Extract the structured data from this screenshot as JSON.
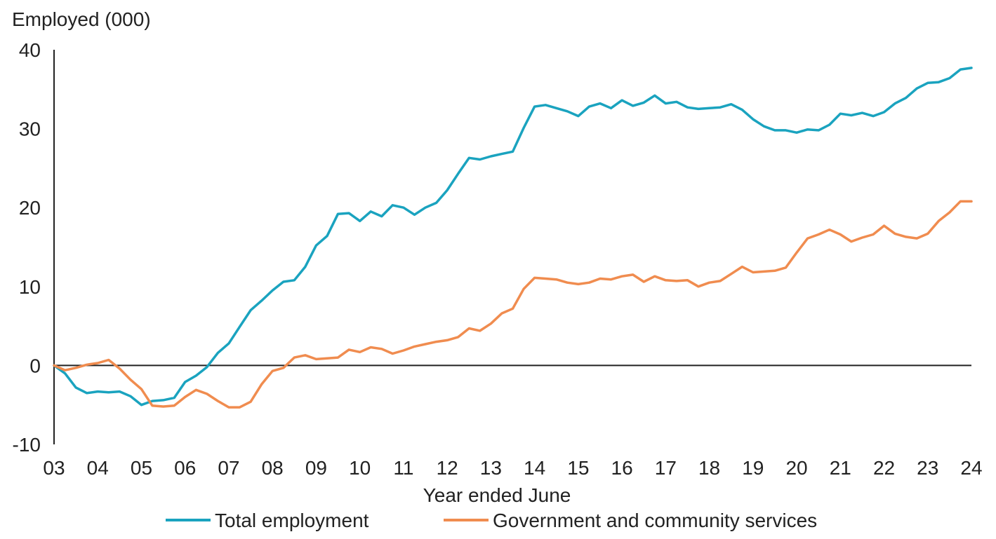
{
  "chart_data": {
    "type": "line",
    "ylabel": "Employed (000)",
    "xlabel": "Year ended June",
    "ylim": [
      -10,
      40
    ],
    "yticks": [
      -10,
      0,
      10,
      20,
      30,
      40
    ],
    "xlim": [
      3,
      24
    ],
    "xticks": [
      "03",
      "04",
      "05",
      "06",
      "07",
      "08",
      "09",
      "10",
      "11",
      "12",
      "13",
      "14",
      "15",
      "16",
      "17",
      "18",
      "19",
      "20",
      "21",
      "22",
      "23",
      "24"
    ],
    "grid": false,
    "legend_position": "bottom",
    "series": [
      {
        "name": "Total employment",
        "color": "#1aa3bf",
        "values": [
          [
            3.0,
            0.0
          ],
          [
            3.25,
            -1.0
          ],
          [
            3.5,
            -2.8
          ],
          [
            3.75,
            -3.5
          ],
          [
            4.0,
            -3.3
          ],
          [
            4.25,
            -3.4
          ],
          [
            4.5,
            -3.3
          ],
          [
            4.75,
            -3.9
          ],
          [
            5.0,
            -5.0
          ],
          [
            5.25,
            -4.5
          ],
          [
            5.5,
            -4.4
          ],
          [
            5.75,
            -4.1
          ],
          [
            6.0,
            -2.1
          ],
          [
            6.25,
            -1.3
          ],
          [
            6.5,
            -0.2
          ],
          [
            6.75,
            1.6
          ],
          [
            7.0,
            2.8
          ],
          [
            7.25,
            4.9
          ],
          [
            7.5,
            7.0
          ],
          [
            7.75,
            8.2
          ],
          [
            8.0,
            9.5
          ],
          [
            8.25,
            10.6
          ],
          [
            8.5,
            10.8
          ],
          [
            8.75,
            12.5
          ],
          [
            9.0,
            15.2
          ],
          [
            9.25,
            16.4
          ],
          [
            9.5,
            19.2
          ],
          [
            9.75,
            19.3
          ],
          [
            10.0,
            18.3
          ],
          [
            10.25,
            19.5
          ],
          [
            10.5,
            18.9
          ],
          [
            10.75,
            20.3
          ],
          [
            11.0,
            20.0
          ],
          [
            11.25,
            19.1
          ],
          [
            11.5,
            20.0
          ],
          [
            11.75,
            20.6
          ],
          [
            12.0,
            22.2
          ],
          [
            12.25,
            24.3
          ],
          [
            12.5,
            26.3
          ],
          [
            12.75,
            26.1
          ],
          [
            13.0,
            26.5
          ],
          [
            13.25,
            26.8
          ],
          [
            13.5,
            27.1
          ],
          [
            13.75,
            30.1
          ],
          [
            14.0,
            32.8
          ],
          [
            14.25,
            33.0
          ],
          [
            14.5,
            32.6
          ],
          [
            14.75,
            32.2
          ],
          [
            15.0,
            31.6
          ],
          [
            15.25,
            32.8
          ],
          [
            15.5,
            33.2
          ],
          [
            15.75,
            32.6
          ],
          [
            16.0,
            33.6
          ],
          [
            16.25,
            32.9
          ],
          [
            16.5,
            33.3
          ],
          [
            16.75,
            34.2
          ],
          [
            17.0,
            33.2
          ],
          [
            17.25,
            33.4
          ],
          [
            17.5,
            32.7
          ],
          [
            17.75,
            32.5
          ],
          [
            18.0,
            32.6
          ],
          [
            18.25,
            32.7
          ],
          [
            18.5,
            33.1
          ],
          [
            18.75,
            32.4
          ],
          [
            19.0,
            31.2
          ],
          [
            19.25,
            30.3
          ],
          [
            19.5,
            29.8
          ],
          [
            19.75,
            29.8
          ],
          [
            20.0,
            29.5
          ],
          [
            20.25,
            29.9
          ],
          [
            20.5,
            29.8
          ],
          [
            20.75,
            30.5
          ],
          [
            21.0,
            31.9
          ],
          [
            21.25,
            31.7
          ],
          [
            21.5,
            32.0
          ],
          [
            21.75,
            31.6
          ],
          [
            22.0,
            32.1
          ],
          [
            22.25,
            33.2
          ],
          [
            22.5,
            33.9
          ],
          [
            22.75,
            35.1
          ],
          [
            23.0,
            35.8
          ],
          [
            23.25,
            35.9
          ],
          [
            23.5,
            36.4
          ],
          [
            23.75,
            37.5
          ],
          [
            24.0,
            37.7
          ]
        ]
      },
      {
        "name": "Government and community services",
        "color": "#f08c4f",
        "values": [
          [
            3.0,
            0.0
          ],
          [
            3.25,
            -0.6
          ],
          [
            3.5,
            -0.3
          ],
          [
            3.75,
            0.1
          ],
          [
            4.0,
            0.3
          ],
          [
            4.25,
            0.7
          ],
          [
            4.5,
            -0.4
          ],
          [
            4.75,
            -1.8
          ],
          [
            5.0,
            -3.0
          ],
          [
            5.25,
            -5.1
          ],
          [
            5.5,
            -5.2
          ],
          [
            5.75,
            -5.1
          ],
          [
            6.0,
            -4.0
          ],
          [
            6.25,
            -3.1
          ],
          [
            6.5,
            -3.6
          ],
          [
            6.75,
            -4.5
          ],
          [
            7.0,
            -5.3
          ],
          [
            7.25,
            -5.3
          ],
          [
            7.5,
            -4.6
          ],
          [
            7.75,
            -2.4
          ],
          [
            8.0,
            -0.7
          ],
          [
            8.25,
            -0.3
          ],
          [
            8.5,
            1.0
          ],
          [
            8.75,
            1.3
          ],
          [
            9.0,
            0.8
          ],
          [
            9.25,
            0.9
          ],
          [
            9.5,
            1.0
          ],
          [
            9.75,
            2.0
          ],
          [
            10.0,
            1.7
          ],
          [
            10.25,
            2.3
          ],
          [
            10.5,
            2.1
          ],
          [
            10.75,
            1.5
          ],
          [
            11.0,
            1.9
          ],
          [
            11.25,
            2.4
          ],
          [
            11.5,
            2.7
          ],
          [
            11.75,
            3.0
          ],
          [
            12.0,
            3.2
          ],
          [
            12.25,
            3.6
          ],
          [
            12.5,
            4.7
          ],
          [
            12.75,
            4.4
          ],
          [
            13.0,
            5.3
          ],
          [
            13.25,
            6.6
          ],
          [
            13.5,
            7.2
          ],
          [
            13.75,
            9.7
          ],
          [
            14.0,
            11.1
          ],
          [
            14.25,
            11.0
          ],
          [
            14.5,
            10.9
          ],
          [
            14.75,
            10.5
          ],
          [
            15.0,
            10.3
          ],
          [
            15.25,
            10.5
          ],
          [
            15.5,
            11.0
          ],
          [
            15.75,
            10.9
          ],
          [
            16.0,
            11.3
          ],
          [
            16.25,
            11.5
          ],
          [
            16.5,
            10.6
          ],
          [
            16.75,
            11.3
          ],
          [
            17.0,
            10.8
          ],
          [
            17.25,
            10.7
          ],
          [
            17.5,
            10.8
          ],
          [
            17.75,
            10.0
          ],
          [
            18.0,
            10.5
          ],
          [
            18.25,
            10.7
          ],
          [
            18.5,
            11.6
          ],
          [
            18.75,
            12.5
          ],
          [
            19.0,
            11.8
          ],
          [
            19.25,
            11.9
          ],
          [
            19.5,
            12.0
          ],
          [
            19.75,
            12.4
          ],
          [
            20.0,
            14.3
          ],
          [
            20.25,
            16.1
          ],
          [
            20.5,
            16.6
          ],
          [
            20.75,
            17.2
          ],
          [
            21.0,
            16.6
          ],
          [
            21.25,
            15.7
          ],
          [
            21.5,
            16.2
          ],
          [
            21.75,
            16.6
          ],
          [
            22.0,
            17.7
          ],
          [
            22.25,
            16.7
          ],
          [
            22.5,
            16.3
          ],
          [
            22.75,
            16.1
          ],
          [
            23.0,
            16.7
          ],
          [
            23.25,
            18.3
          ],
          [
            23.5,
            19.4
          ],
          [
            23.75,
            20.8
          ],
          [
            24.0,
            20.8
          ]
        ]
      }
    ]
  }
}
